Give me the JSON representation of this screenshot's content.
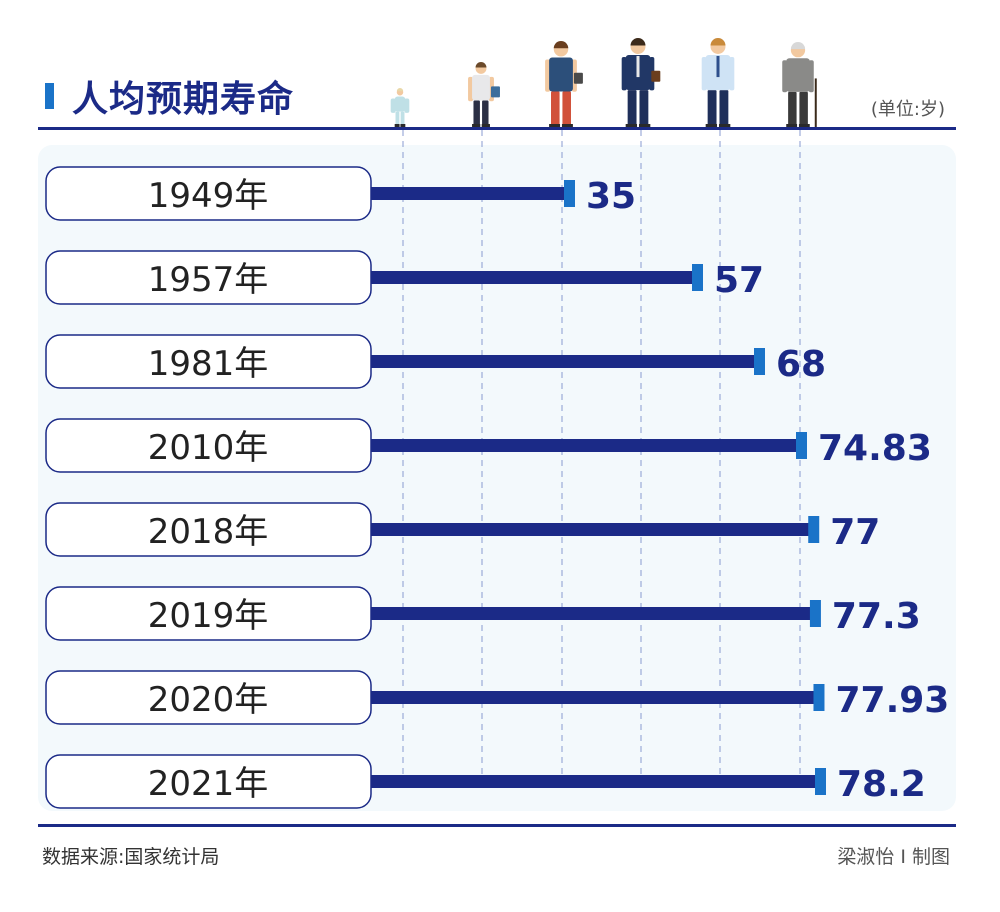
{
  "title": "人均预期寿命",
  "unit_label": "(单位:岁)",
  "source": "数据来源:国家统计局",
  "credit": "梁淑怡 I 制图",
  "colors": {
    "navy": "#1b2a87",
    "accent": "#1a73c8",
    "panel": "#f3f9fc",
    "label_border": "#1b2a87"
  },
  "chart_data": {
    "type": "bar",
    "orientation": "horizontal",
    "categories": [
      "1949年",
      "1957年",
      "1981年",
      "2010年",
      "2018年",
      "2019年",
      "2020年",
      "2021年"
    ],
    "values": [
      35,
      57,
      68,
      74.83,
      77,
      77.3,
      77.93,
      78.2
    ],
    "value_labels": [
      "35",
      "57",
      "68",
      "74.83",
      "77",
      "77.3",
      "77.93",
      "78.2"
    ],
    "title": "人均预期寿命",
    "unit": "(单位:岁)",
    "ylim": [
      0,
      80
    ],
    "grid": true,
    "legend": "none",
    "illustrations": [
      "baby",
      "child",
      "young-adult",
      "businessman",
      "middle-aged-man",
      "elderly-man"
    ]
  }
}
